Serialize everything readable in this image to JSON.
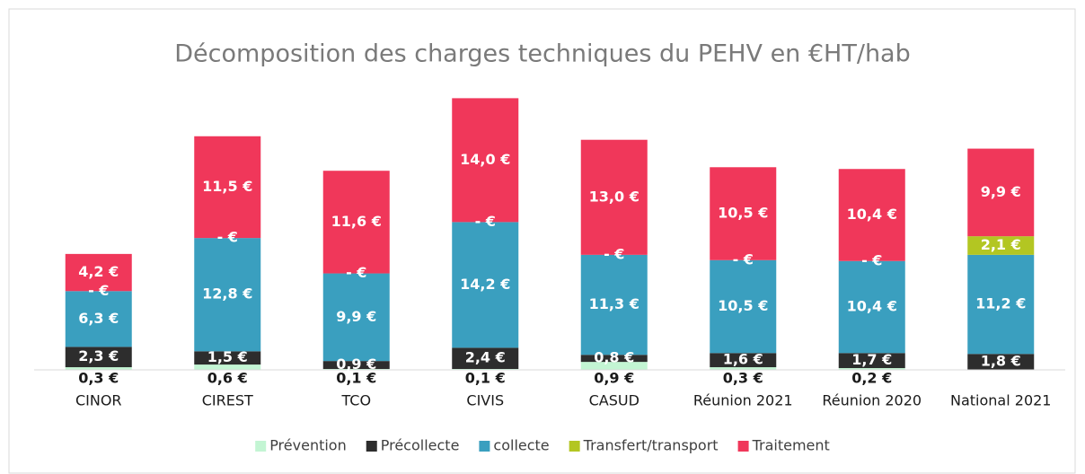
{
  "chart_data": {
    "type": "stacked_bar",
    "title": "Décomposition des charges techniques du PEHV en €HT/hab",
    "categories": [
      "CINOR",
      "CIREST",
      "TCO",
      "CIVIS",
      "CASUD",
      "Réunion 2021",
      "Réunion 2020",
      "National 2021"
    ],
    "series": [
      {
        "name": "Prévention",
        "color": "#c3f5d3",
        "values": [
          0.3,
          0.6,
          0.1,
          0.1,
          0.9,
          0.3,
          0.2,
          null
        ],
        "value_labels": [
          "0,3 €",
          "0,6 €",
          "0,1 €",
          "0,1 €",
          "0,9 €",
          "0,3 €",
          "0,2 €",
          null
        ]
      },
      {
        "name": "Précollecte",
        "color": "#2d2d2d",
        "values": [
          2.3,
          1.5,
          0.9,
          2.4,
          0.8,
          1.6,
          1.7,
          1.8
        ],
        "value_labels": [
          "2,3 €",
          "1,5 €",
          "0,9 €",
          "2,4 €",
          "0,8 €",
          "1,6 €",
          "1,7 €",
          "1,8 €"
        ]
      },
      {
        "name": "collecte",
        "color": "#3a9fbf",
        "values": [
          6.3,
          12.8,
          9.9,
          14.2,
          11.3,
          10.5,
          10.4,
          11.2
        ],
        "value_labels": [
          "6,3 €",
          "12,8 €",
          "9,9 €",
          "14,2 €",
          "11,3 €",
          "10,5 €",
          "10,4 €",
          "11,2 €"
        ]
      },
      {
        "name": "Transfert/transport",
        "color": "#b3c622",
        "values": [
          0,
          0,
          0,
          0,
          0,
          0,
          0,
          2.1
        ],
        "value_labels": [
          "-  €",
          "-  €",
          "-  €",
          "-  €",
          "-  €",
          "-  €",
          "-  €",
          "2,1 €"
        ]
      },
      {
        "name": "Traitement",
        "color": "#f0375a",
        "values": [
          4.2,
          11.5,
          11.6,
          14.0,
          13.0,
          10.5,
          10.4,
          9.9
        ],
        "value_labels": [
          "4,2 €",
          "11,5 €",
          "11,6 €",
          "14,0 €",
          "13,0 €",
          "10,5 €",
          "10,4 €",
          "9,9 €"
        ]
      }
    ],
    "ylim": [
      0,
      35
    ],
    "legend": "bottom"
  }
}
